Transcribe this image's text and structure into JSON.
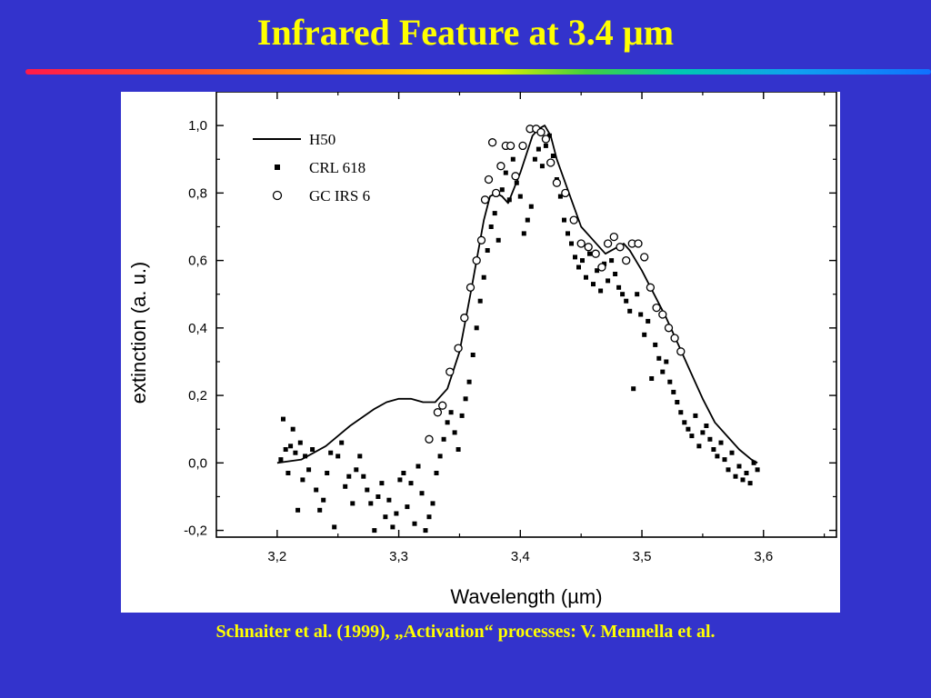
{
  "slide": {
    "title": "Infrared Feature at 3.4 µm",
    "caption": "Schnaiter et al. (1999), „Activation“ processes: V. Mennella et al."
  },
  "colors": {
    "background": "#3333cc",
    "title": "#ffff00",
    "caption": "#ffff00",
    "plot_background": "#ffffff"
  },
  "chart_data": {
    "type": "line",
    "title": "",
    "xlabel": "Wavelength (µm)",
    "ylabel": "extinction (a. u.)",
    "xlim": [
      3.15,
      3.66
    ],
    "ylim": [
      -0.22,
      1.1
    ],
    "x_ticks": [
      3.2,
      3.3,
      3.4,
      3.5,
      3.6
    ],
    "x_tick_labels": [
      "3,2",
      "3,3",
      "3,4",
      "3,5",
      "3,6"
    ],
    "y_ticks": [
      -0.2,
      0.0,
      0.2,
      0.4,
      0.6,
      0.8,
      1.0
    ],
    "y_tick_labels": [
      "-0,2",
      "0,0",
      "0,2",
      "0,4",
      "0,6",
      "0,8",
      "1,0"
    ],
    "grid": false,
    "legend_position": "top-left",
    "series": [
      {
        "name": "H50",
        "style": "line",
        "x": [
          3.2,
          3.22,
          3.24,
          3.26,
          3.28,
          3.29,
          3.3,
          3.31,
          3.32,
          3.33,
          3.34,
          3.35,
          3.36,
          3.37,
          3.375,
          3.38,
          3.385,
          3.39,
          3.4,
          3.41,
          3.415,
          3.42,
          3.425,
          3.43,
          3.44,
          3.45,
          3.46,
          3.47,
          3.48,
          3.485,
          3.49,
          3.5,
          3.51,
          3.52,
          3.53,
          3.54,
          3.55,
          3.56,
          3.57,
          3.58,
          3.59,
          3.595
        ],
        "y": [
          0.0,
          0.01,
          0.05,
          0.11,
          0.16,
          0.18,
          0.19,
          0.19,
          0.18,
          0.18,
          0.22,
          0.33,
          0.52,
          0.72,
          0.79,
          0.8,
          0.79,
          0.77,
          0.86,
          0.97,
          0.99,
          1.0,
          0.97,
          0.9,
          0.8,
          0.7,
          0.66,
          0.62,
          0.64,
          0.65,
          0.63,
          0.57,
          0.5,
          0.43,
          0.35,
          0.27,
          0.19,
          0.12,
          0.08,
          0.04,
          0.01,
          0.0
        ]
      },
      {
        "name": "CRL 618",
        "style": "square-markers",
        "x": [
          3.203,
          3.205,
          3.207,
          3.209,
          3.211,
          3.213,
          3.215,
          3.217,
          3.219,
          3.221,
          3.223,
          3.226,
          3.229,
          3.232,
          3.235,
          3.238,
          3.241,
          3.244,
          3.247,
          3.25,
          3.253,
          3.256,
          3.259,
          3.262,
          3.265,
          3.268,
          3.271,
          3.274,
          3.277,
          3.28,
          3.283,
          3.286,
          3.289,
          3.292,
          3.295,
          3.298,
          3.301,
          3.304,
          3.307,
          3.31,
          3.313,
          3.316,
          3.319,
          3.322,
          3.325,
          3.328,
          3.331,
          3.334,
          3.337,
          3.34,
          3.343,
          3.346,
          3.349,
          3.352,
          3.355,
          3.358,
          3.361,
          3.364,
          3.367,
          3.37,
          3.373,
          3.376,
          3.379,
          3.382,
          3.385,
          3.388,
          3.391,
          3.394,
          3.397,
          3.4,
          3.403,
          3.406,
          3.409,
          3.412,
          3.415,
          3.418,
          3.421,
          3.424,
          3.427,
          3.43,
          3.433,
          3.436,
          3.439,
          3.442,
          3.445,
          3.448,
          3.451,
          3.454,
          3.457,
          3.46,
          3.463,
          3.466,
          3.469,
          3.472,
          3.475,
          3.478,
          3.481,
          3.484,
          3.487,
          3.49,
          3.493,
          3.496,
          3.499,
          3.502,
          3.505,
          3.508,
          3.511,
          3.514,
          3.517,
          3.52,
          3.523,
          3.526,
          3.529,
          3.532,
          3.535,
          3.538,
          3.541,
          3.544,
          3.547,
          3.55,
          3.553,
          3.556,
          3.559,
          3.562,
          3.565,
          3.568,
          3.571,
          3.574,
          3.577,
          3.58,
          3.583,
          3.586,
          3.589,
          3.592,
          3.595
        ],
        "y": [
          0.01,
          0.13,
          0.04,
          -0.03,
          0.05,
          0.1,
          0.03,
          -0.14,
          0.06,
          -0.05,
          0.02,
          -0.02,
          0.04,
          -0.08,
          -0.14,
          -0.11,
          -0.03,
          0.03,
          -0.19,
          0.02,
          0.06,
          -0.07,
          -0.04,
          -0.12,
          -0.02,
          0.02,
          -0.04,
          -0.08,
          -0.12,
          -0.2,
          -0.1,
          -0.06,
          -0.16,
          -0.11,
          -0.19,
          -0.15,
          -0.05,
          -0.03,
          -0.13,
          -0.06,
          -0.18,
          -0.01,
          -0.09,
          -0.2,
          -0.16,
          -0.12,
          -0.03,
          0.02,
          0.07,
          0.12,
          0.15,
          0.09,
          0.04,
          0.14,
          0.19,
          0.24,
          0.32,
          0.4,
          0.48,
          0.55,
          0.63,
          0.7,
          0.74,
          0.66,
          0.81,
          0.86,
          0.78,
          0.9,
          0.83,
          0.79,
          0.68,
          0.72,
          0.76,
          0.9,
          0.93,
          0.88,
          0.94,
          0.97,
          0.91,
          0.84,
          0.79,
          0.72,
          0.68,
          0.65,
          0.61,
          0.58,
          0.6,
          0.55,
          0.62,
          0.53,
          0.57,
          0.51,
          0.59,
          0.54,
          0.6,
          0.56,
          0.52,
          0.5,
          0.48,
          0.45,
          0.22,
          0.5,
          0.44,
          0.38,
          0.42,
          0.25,
          0.35,
          0.31,
          0.27,
          0.3,
          0.24,
          0.21,
          0.18,
          0.15,
          0.12,
          0.1,
          0.08,
          0.14,
          0.05,
          0.09,
          0.11,
          0.07,
          0.04,
          0.02,
          0.06,
          0.01,
          -0.02,
          0.03,
          -0.04,
          -0.01,
          -0.05,
          -0.03,
          -0.06,
          0.0,
          -0.02
        ]
      },
      {
        "name": "GC IRS 6",
        "style": "open-circle-markers",
        "x": [
          3.325,
          3.332,
          3.336,
          3.342,
          3.349,
          3.354,
          3.359,
          3.364,
          3.368,
          3.371,
          3.374,
          3.377,
          3.38,
          3.384,
          3.388,
          3.392,
          3.396,
          3.402,
          3.408,
          3.413,
          3.417,
          3.421,
          3.425,
          3.43,
          3.437,
          3.444,
          3.45,
          3.456,
          3.462,
          3.467,
          3.472,
          3.477,
          3.482,
          3.487,
          3.492,
          3.497,
          3.502,
          3.507,
          3.512,
          3.517,
          3.522,
          3.527,
          3.532
        ],
        "y": [
          0.07,
          0.15,
          0.17,
          0.27,
          0.34,
          0.43,
          0.52,
          0.6,
          0.66,
          0.78,
          0.84,
          0.95,
          0.8,
          0.88,
          0.94,
          0.94,
          0.85,
          0.94,
          0.99,
          0.99,
          0.98,
          0.96,
          0.89,
          0.83,
          0.8,
          0.72,
          0.65,
          0.64,
          0.62,
          0.58,
          0.65,
          0.67,
          0.64,
          0.6,
          0.65,
          0.65,
          0.61,
          0.52,
          0.46,
          0.44,
          0.4,
          0.37,
          0.33
        ]
      }
    ]
  }
}
